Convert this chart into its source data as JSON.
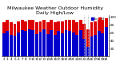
{
  "title": "Milwaukee Weather Outdoor Humidity",
  "subtitle": "Daily High/Low",
  "high_values": [
    88,
    93,
    87,
    84,
    90,
    93,
    90,
    93,
    93,
    87,
    90,
    93,
    87,
    93,
    87,
    90,
    90,
    93,
    93,
    93,
    87,
    93,
    83,
    70,
    87,
    90,
    93,
    93,
    97
  ],
  "low_values": [
    60,
    65,
    55,
    52,
    62,
    68,
    65,
    70,
    68,
    58,
    63,
    70,
    58,
    68,
    55,
    65,
    60,
    68,
    65,
    62,
    55,
    68,
    45,
    25,
    50,
    55,
    65,
    60,
    75
  ],
  "high_color": "#dd0000",
  "low_color": "#0000cc",
  "dashed_indices": [
    22,
    23
  ],
  "bg_color": "#ffffff",
  "ylim": [
    0,
    105
  ],
  "yticks": [
    20,
    40,
    60,
    80,
    100
  ],
  "ytick_labels": [
    "20",
    "40",
    "60",
    "80",
    "100"
  ],
  "title_fontsize": 4.5,
  "tick_fontsize": 3.0,
  "legend_fontsize": 3.0,
  "bar_width": 0.42
}
